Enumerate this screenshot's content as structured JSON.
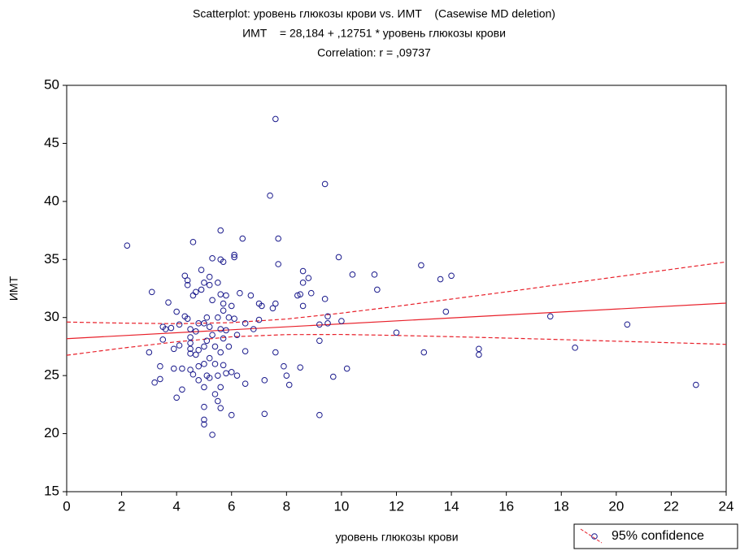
{
  "chart_data": {
    "type": "scatter",
    "title": "Scatterplot: уровень глюкозы крови vs. ИМТ    (Casewise MD deletion)",
    "subtitle": "ИМТ    = 28,184 + ,12751 * уровень глюкозы крови",
    "annotation": "Correlation: r = ,09737",
    "xlabel": "уровень глюкозы крови",
    "ylabel": "ИМТ",
    "legend": "95% confidence",
    "legend_loc": "lower right",
    "color": "#1a1a8c",
    "fit_color": "#e8202a",
    "xlim": [
      0,
      24
    ],
    "ylim": [
      15,
      50
    ],
    "xticks": [
      0,
      2,
      4,
      6,
      8,
      10,
      12,
      14,
      16,
      18,
      20,
      22,
      24
    ],
    "yticks": [
      15,
      20,
      25,
      30,
      35,
      40,
      45,
      50
    ],
    "x": [
      2.2,
      3.1,
      3.0,
      3.2,
      3.4,
      3.4,
      3.5,
      3.6,
      3.5,
      3.7,
      3.8,
      3.9,
      3.9,
      4.0,
      4.0,
      4.1,
      4.1,
      4.2,
      4.2,
      4.3,
      4.3,
      4.4,
      4.4,
      4.4,
      4.5,
      4.5,
      4.5,
      4.5,
      4.5,
      4.5,
      4.6,
      4.6,
      4.6,
      4.7,
      4.7,
      4.7,
      4.8,
      4.8,
      4.8,
      4.8,
      4.9,
      4.9,
      5.0,
      5.0,
      5.0,
      5.0,
      5.0,
      5.0,
      5.0,
      5.0,
      5.1,
      5.1,
      5.1,
      5.2,
      5.2,
      5.2,
      5.2,
      5.2,
      5.3,
      5.3,
      5.3,
      5.3,
      5.4,
      5.4,
      5.4,
      5.5,
      5.5,
      5.5,
      5.5,
      5.6,
      5.6,
      5.6,
      5.6,
      5.6,
      5.6,
      5.6,
      5.7,
      5.7,
      5.7,
      5.7,
      5.7,
      5.8,
      5.8,
      5.8,
      5.9,
      5.9,
      6.0,
      6.0,
      6.0,
      6.1,
      6.1,
      6.1,
      6.2,
      6.2,
      6.3,
      6.4,
      6.5,
      6.5,
      6.5,
      6.7,
      6.8,
      7.0,
      7.0,
      7.1,
      7.2,
      7.2,
      7.4,
      7.5,
      7.6,
      7.6,
      7.6,
      7.7,
      7.7,
      7.9,
      8.0,
      8.1,
      8.4,
      8.5,
      8.5,
      8.6,
      8.6,
      8.6,
      8.8,
      8.9,
      9.2,
      9.2,
      9.2,
      9.4,
      9.4,
      9.5,
      9.5,
      9.7,
      9.9,
      10.0,
      10.2,
      10.4,
      11.2,
      11.3,
      12.0,
      12.9,
      13.0,
      13.6,
      13.8,
      14.0,
      15.0,
      15.0,
      17.6,
      18.5,
      20.4,
      22.9
    ],
    "values": [
      36.2,
      32.2,
      27.0,
      24.4,
      24.7,
      25.8,
      29.2,
      29.0,
      28.1,
      31.3,
      29.1,
      27.3,
      25.6,
      23.1,
      30.5,
      29.4,
      27.6,
      25.6,
      23.8,
      30.1,
      33.6,
      33.2,
      32.8,
      29.9,
      29.0,
      28.3,
      27.8,
      27.3,
      26.9,
      25.5,
      25.1,
      31.9,
      36.5,
      32.2,
      28.8,
      26.8,
      25.8,
      24.6,
      27.2,
      29.5,
      32.4,
      34.1,
      33.0,
      29.5,
      27.5,
      26.0,
      24.0,
      22.3,
      21.2,
      20.8,
      30.0,
      28.0,
      25.0,
      33.5,
      32.8,
      29.2,
      26.5,
      24.8,
      35.1,
      31.5,
      28.5,
      19.9,
      27.5,
      26.0,
      23.4,
      33.0,
      30.0,
      25.0,
      22.8,
      37.5,
      35.0,
      32.0,
      29.0,
      27.0,
      24.0,
      22.2,
      34.8,
      31.2,
      30.6,
      28.2,
      25.9,
      31.9,
      28.9,
      25.2,
      30.0,
      27.5,
      25.3,
      21.6,
      31.0,
      35.4,
      35.2,
      29.9,
      28.5,
      25.0,
      32.1,
      36.8,
      29.5,
      27.1,
      24.3,
      31.9,
      29.0,
      31.2,
      29.8,
      31.0,
      24.6,
      21.7,
      40.5,
      30.8,
      47.1,
      31.2,
      27.0,
      36.8,
      34.6,
      25.8,
      25.0,
      24.2,
      31.9,
      32.0,
      25.7,
      34.0,
      33.0,
      31.0,
      33.4,
      32.1,
      29.4,
      28.0,
      21.6,
      41.5,
      31.6,
      30.1,
      29.5,
      24.9,
      35.2,
      29.7,
      25.6,
      33.7,
      33.7,
      32.4,
      28.7,
      34.5,
      27.0,
      33.3,
      30.5,
      33.6,
      27.3,
      26.8,
      30.1,
      27.4,
      29.4,
      24.2
    ],
    "fit_lines": [
      {
        "dashed": false,
        "x": [
          0,
          24
        ],
        "values": [
          28.18,
          31.24
        ]
      },
      {
        "dashed": true,
        "x": [
          0,
          2,
          4,
          6,
          8,
          10,
          12,
          14,
          16,
          18,
          20,
          22,
          24
        ],
        "values": [
          29.61,
          29.52,
          29.47,
          29.56,
          29.87,
          30.38,
          30.96,
          31.59,
          32.21,
          32.86,
          33.5,
          34.15,
          34.79
        ]
      },
      {
        "dashed": true,
        "x": [
          0,
          2,
          4,
          6,
          8,
          10,
          12,
          14,
          16,
          18,
          20,
          22,
          24
        ],
        "values": [
          26.75,
          27.36,
          27.91,
          28.34,
          28.53,
          28.54,
          28.46,
          28.35,
          28.23,
          28.1,
          27.96,
          27.83,
          27.69
        ]
      }
    ]
  }
}
